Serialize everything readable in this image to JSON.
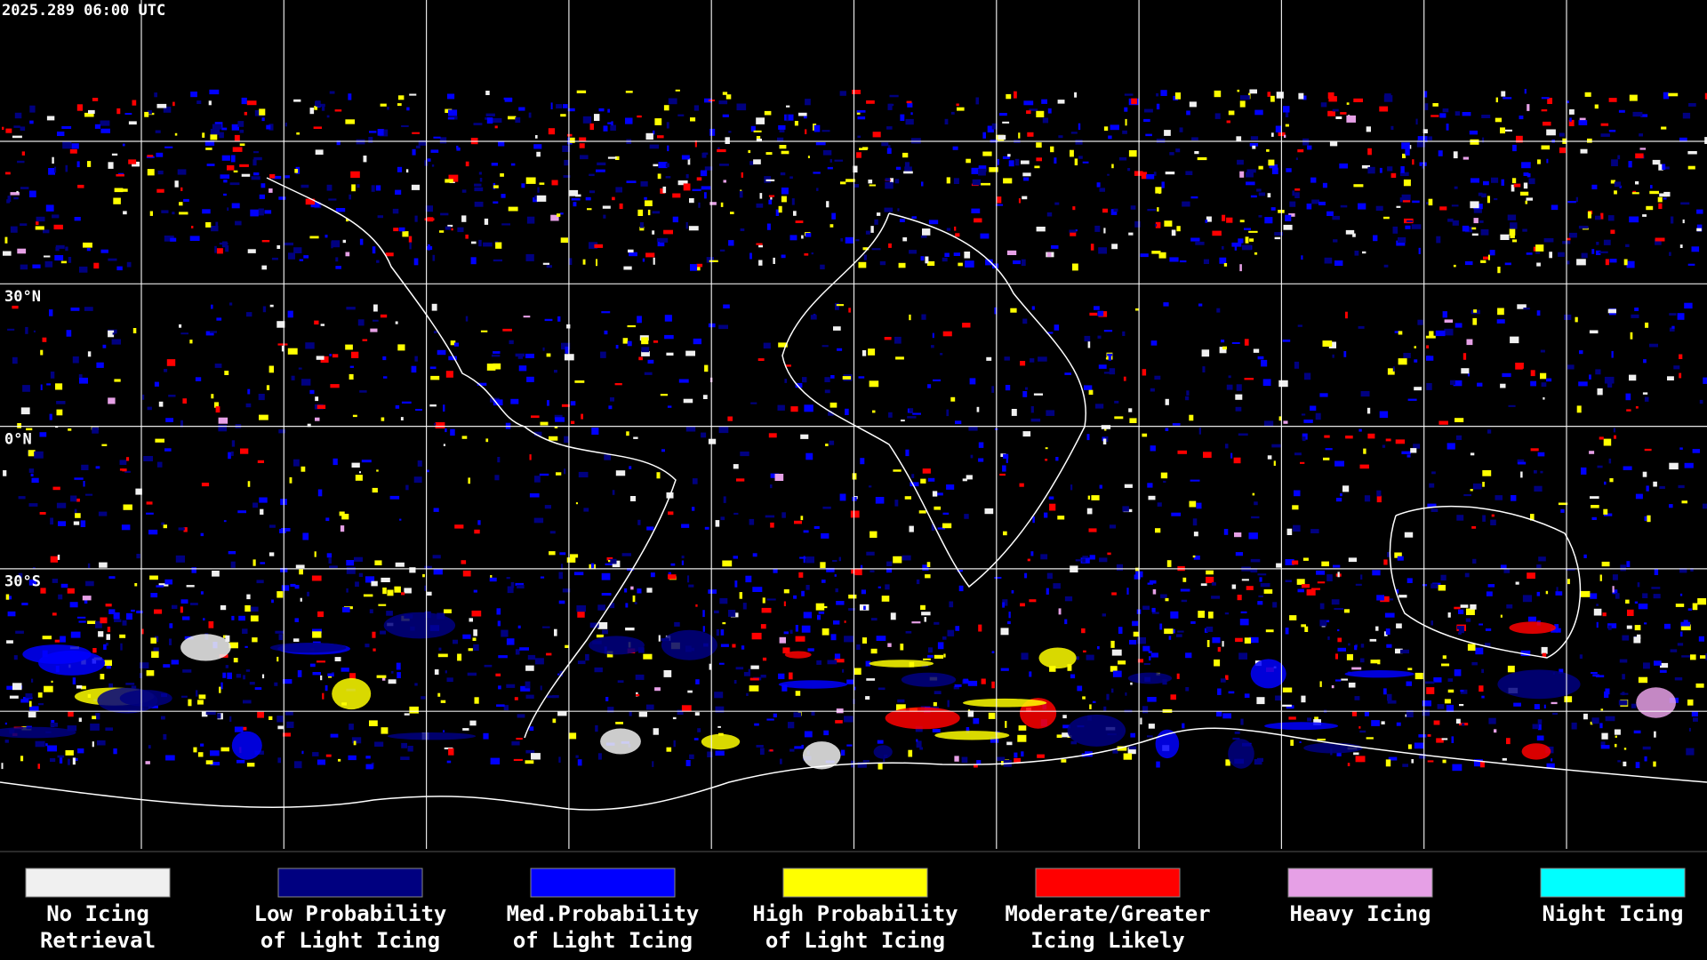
{
  "header": {
    "timestamp": "2025.289 06:00 UTC"
  },
  "map": {
    "latitude_labels": [
      "30°N",
      "0°N",
      "30°S"
    ]
  },
  "legend": {
    "items": [
      {
        "label": [
          "No Icing",
          "Retrieval"
        ],
        "color": "#f0f0f0"
      },
      {
        "label": [
          "Low Probability",
          "of Light Icing"
        ],
        "color": "#000080"
      },
      {
        "label": [
          "Med.Probability",
          "of Light Icing"
        ],
        "color": "#0000ff"
      },
      {
        "label": [
          "High Probability",
          "of Light Icing"
        ],
        "color": "#ffff00"
      },
      {
        "label": [
          "Moderate/Greater",
          "Icing Likely"
        ],
        "color": "#ff0000"
      },
      {
        "label": [
          "Heavy Icing"
        ],
        "color": "#e6a0e6"
      },
      {
        "label": [
          "Night Icing"
        ],
        "color": "#00ffff"
      }
    ]
  }
}
